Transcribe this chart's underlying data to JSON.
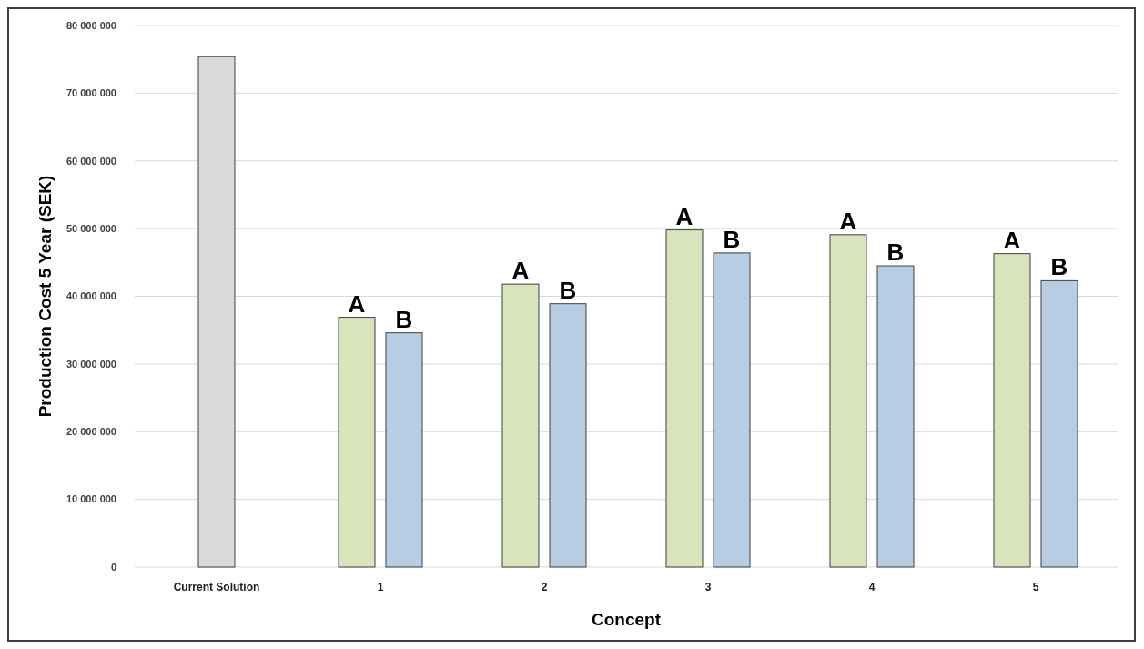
{
  "chart_data": {
    "type": "bar",
    "xlabel": "Concept",
    "ylabel": "Production Cost 5 Year (SEK)",
    "categories": [
      "Current Solution",
      "1",
      "2",
      "3",
      "4",
      "5"
    ],
    "series": [
      {
        "color": "#d9d9d9",
        "values": [
          75400000,
          null,
          null,
          null,
          null,
          null
        ]
      },
      {
        "name": "A",
        "color": "#d8e4bc",
        "values": [
          null,
          36900000,
          41800000,
          49800000,
          49100000,
          46300000
        ]
      },
      {
        "name": "B",
        "color": "#b8cce4",
        "values": [
          null,
          34600000,
          38900000,
          46400000,
          44500000,
          42300000
        ]
      }
    ],
    "ylim": [
      0,
      80000000
    ],
    "yticks": [
      {
        "value": 0,
        "label": "0"
      },
      {
        "value": 10000000,
        "label": "10 000 000"
      },
      {
        "value": 20000000,
        "label": "20 000 000"
      },
      {
        "value": 30000000,
        "label": "30 000 000"
      },
      {
        "value": 40000000,
        "label": "40 000 000"
      },
      {
        "value": 50000000,
        "label": "50 000 000"
      },
      {
        "value": 60000000,
        "label": "60 000 000"
      },
      {
        "value": 70000000,
        "label": "70 000 000"
      },
      {
        "value": 80000000,
        "label": "80 000 000"
      }
    ],
    "grid": "y"
  }
}
